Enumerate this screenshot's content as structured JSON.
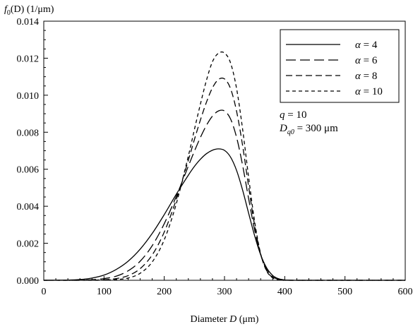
{
  "chart_data": {
    "type": "line",
    "ylabel": {
      "f": "f",
      "sub": "0",
      "rest": "(D) (1/μm)"
    },
    "xlabel": {
      "pre": "Diameter ",
      "var": "D",
      "post": " (μm)"
    },
    "xlim": [
      0,
      600
    ],
    "ylim": [
      0,
      0.014
    ],
    "x_ticks": [
      "0",
      "100",
      "200",
      "300",
      "400",
      "500",
      "600"
    ],
    "y_ticks": [
      "0.000",
      "0.002",
      "0.004",
      "0.006",
      "0.008",
      "0.010",
      "0.012",
      "0.014"
    ],
    "legend_position": "top-right",
    "grid": false,
    "x": [
      0,
      40,
      60,
      80,
      100,
      120,
      140,
      160,
      180,
      200,
      220,
      240,
      250,
      260,
      270,
      280,
      290,
      300,
      310,
      320,
      330,
      340,
      350,
      360,
      370,
      380,
      390,
      400,
      420,
      450,
      600
    ],
    "series": [
      {
        "name": "α = 4",
        "dash": "solid",
        "values": [
          0,
          1e-05,
          4e-05,
          0.00012,
          0.00028,
          0.00058,
          0.00103,
          0.00168,
          0.00253,
          0.00355,
          0.00465,
          0.00568,
          0.00615,
          0.00654,
          0.00684,
          0.00703,
          0.0071,
          0.00702,
          0.00666,
          0.00594,
          0.00488,
          0.00363,
          0.00241,
          0.00138,
          0.00067,
          0.00026,
          8e-05,
          2e-05,
          0,
          0,
          0
        ]
      },
      {
        "name": "α = 6",
        "dash": "long",
        "values": [
          0,
          0,
          1e-05,
          3e-05,
          9e-05,
          0.00022,
          0.00051,
          0.00103,
          0.00187,
          0.00306,
          0.00454,
          0.00617,
          0.00697,
          0.00772,
          0.00837,
          0.00887,
          0.00915,
          0.00915,
          0.00872,
          0.00773,
          0.00622,
          0.00442,
          0.00272,
          0.00139,
          0.00058,
          0.00019,
          5e-05,
          1e-05,
          0,
          0,
          0
        ]
      },
      {
        "name": "α = 8",
        "dash": "medium",
        "values": [
          0,
          0,
          0,
          1e-05,
          3e-05,
          9e-05,
          0.00025,
          0.00063,
          0.00137,
          0.00261,
          0.00437,
          0.00649,
          0.0076,
          0.00866,
          0.00962,
          0.0104,
          0.01085,
          0.01088,
          0.01036,
          0.00914,
          0.00729,
          0.00507,
          0.00297,
          0.00141,
          0.00052,
          0.00015,
          3e-05,
          0,
          0,
          0,
          0
        ]
      },
      {
        "name": "α = 10",
        "dash": "short",
        "values": [
          0,
          0,
          0,
          0,
          1e-05,
          4e-05,
          0.00012,
          0.00038,
          0.00099,
          0.00219,
          0.00414,
          0.00672,
          0.00814,
          0.00952,
          0.0108,
          0.01181,
          0.01227,
          0.01228,
          0.01175,
          0.01037,
          0.00818,
          0.00558,
          0.00318,
          0.00144,
          0.0005,
          0.00013,
          2e-05,
          0,
          0,
          0,
          0
        ]
      }
    ],
    "annotations": {
      "q": {
        "var": "q",
        "rest": " = 10"
      },
      "dq0": {
        "var": "D",
        "sub": "q0",
        "rest": " = 300 μm"
      }
    }
  }
}
